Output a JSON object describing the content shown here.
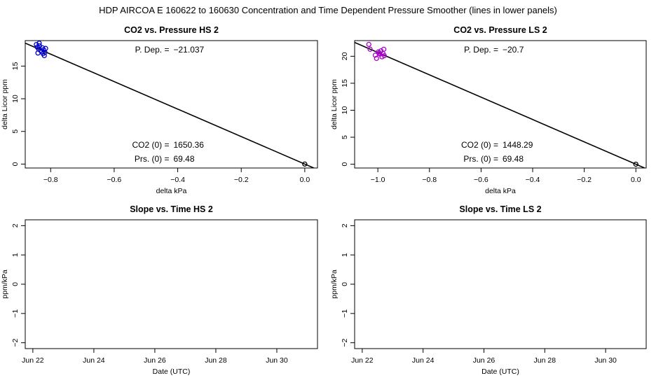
{
  "page_title": "HDP   AIRCOA E   160622 to 160630   Concentration and Time Dependent Pressure Smoother (lines in lower panels)",
  "chart_data": [
    {
      "type": "scatter",
      "title": "CO2 vs. Pressure HS 2",
      "xlabel": "delta kPa",
      "ylabel": "delta Licor ppm",
      "xlim": [
        -0.88,
        0.04
      ],
      "ylim": [
        -0.6,
        18.9
      ],
      "xticks": [
        -0.8,
        -0.6,
        -0.4,
        -0.2,
        0.0
      ],
      "xtick_labels": [
        "−0.8",
        "−0.6",
        "−0.4",
        "−0.2",
        "0.0"
      ],
      "yticks": [
        0,
        5,
        10,
        15
      ],
      "ytick_labels": [
        "0",
        "5",
        "10",
        "15"
      ],
      "point_color": "#0000cc",
      "points": [
        {
          "x": -0.845,
          "y": 18.3
        },
        {
          "x": -0.842,
          "y": 17.9
        },
        {
          "x": -0.838,
          "y": 17.6
        },
        {
          "x": -0.835,
          "y": 18.1
        },
        {
          "x": -0.832,
          "y": 17.4
        },
        {
          "x": -0.828,
          "y": 17.2
        },
        {
          "x": -0.826,
          "y": 17.8
        },
        {
          "x": -0.824,
          "y": 16.9
        },
        {
          "x": -0.822,
          "y": 17.5
        },
        {
          "x": -0.82,
          "y": 16.6
        },
        {
          "x": -0.818,
          "y": 17.1
        },
        {
          "x": -0.816,
          "y": 17.7
        },
        {
          "x": -0.84,
          "y": 17.0
        },
        {
          "x": -0.836,
          "y": 18.5
        }
      ],
      "origin_point": {
        "x": 0.0,
        "y": 0.0
      },
      "fit_line": {
        "slope": -21.037,
        "intercept": 0.0
      },
      "annotations": {
        "p_dep_label": "P. Dep. =",
        "p_dep_value": "−21.037",
        "co2_label": "CO2 (0) =",
        "co2_value": "1650.36",
        "prs_label": "Prs. (0) =",
        "prs_value": "69.48"
      }
    },
    {
      "type": "scatter",
      "title": "CO2 vs. Pressure LS 2",
      "xlabel": "delta kPa",
      "ylabel": "delta Licor ppm",
      "xlim": [
        -1.09,
        0.04
      ],
      "ylim": [
        -0.7,
        22.9
      ],
      "xticks": [
        -1.0,
        -0.8,
        -0.6,
        -0.4,
        -0.2,
        0.0
      ],
      "xtick_labels": [
        "−1.0",
        "−0.8",
        "−0.6",
        "−0.4",
        "−0.2",
        "0.0"
      ],
      "yticks": [
        0,
        5,
        10,
        15,
        20
      ],
      "ytick_labels": [
        "0",
        "5",
        "10",
        "15",
        "20"
      ],
      "point_color": "#aa00cc",
      "points": [
        {
          "x": -1.035,
          "y": 22.2
        },
        {
          "x": -1.03,
          "y": 21.3
        },
        {
          "x": -1.01,
          "y": 20.2
        },
        {
          "x": -1.005,
          "y": 19.6
        },
        {
          "x": -0.998,
          "y": 20.8
        },
        {
          "x": -0.992,
          "y": 20.4
        },
        {
          "x": -0.988,
          "y": 21.0
        },
        {
          "x": -0.984,
          "y": 19.9
        },
        {
          "x": -0.98,
          "y": 20.5
        },
        {
          "x": -0.977,
          "y": 21.3
        },
        {
          "x": -0.975,
          "y": 20.1
        },
        {
          "x": -0.995,
          "y": 20.6
        }
      ],
      "origin_point": {
        "x": 0.0,
        "y": 0.0
      },
      "fit_line": {
        "slope": -20.7,
        "intercept": 0.0
      },
      "annotations": {
        "p_dep_label": "P. Dep. =",
        "p_dep_value": "−20.7",
        "co2_label": "CO2 (0) =",
        "co2_value": "1448.29",
        "prs_label": "Prs. (0) =",
        "prs_value": "69.48"
      }
    },
    {
      "type": "line",
      "title": "Slope vs. Time HS 2",
      "xlabel": "Date (UTC)",
      "ylabel": "ppm/kPa",
      "xlim": [
        "2016-06-21 18:00",
        "2016-07-01 08:00"
      ],
      "ylim": [
        -2.2,
        2.2
      ],
      "xticks": [
        "2016-06-22",
        "2016-06-24",
        "2016-06-26",
        "2016-06-28",
        "2016-06-30"
      ],
      "xtick_labels": [
        "Jun 22",
        "Jun 24",
        "Jun 26",
        "Jun 28",
        "Jun 30"
      ],
      "yticks": [
        -2,
        -1,
        0,
        1,
        2
      ],
      "ytick_labels": [
        "−2",
        "−1",
        "0",
        "1",
        "2"
      ],
      "series": []
    },
    {
      "type": "line",
      "title": "Slope vs. Time LS 2",
      "xlabel": "Date (UTC)",
      "ylabel": "ppm/kPa",
      "xlim": [
        "2016-06-21 18:00",
        "2016-07-01 08:00"
      ],
      "ylim": [
        -2.2,
        2.2
      ],
      "xticks": [
        "2016-06-22",
        "2016-06-24",
        "2016-06-26",
        "2016-06-28",
        "2016-06-30"
      ],
      "xtick_labels": [
        "Jun 22",
        "Jun 24",
        "Jun 26",
        "Jun 28",
        "Jun 30"
      ],
      "yticks": [
        -2,
        -1,
        0,
        1,
        2
      ],
      "ytick_labels": [
        "−2",
        "−1",
        "0",
        "1",
        "2"
      ],
      "series": []
    }
  ]
}
